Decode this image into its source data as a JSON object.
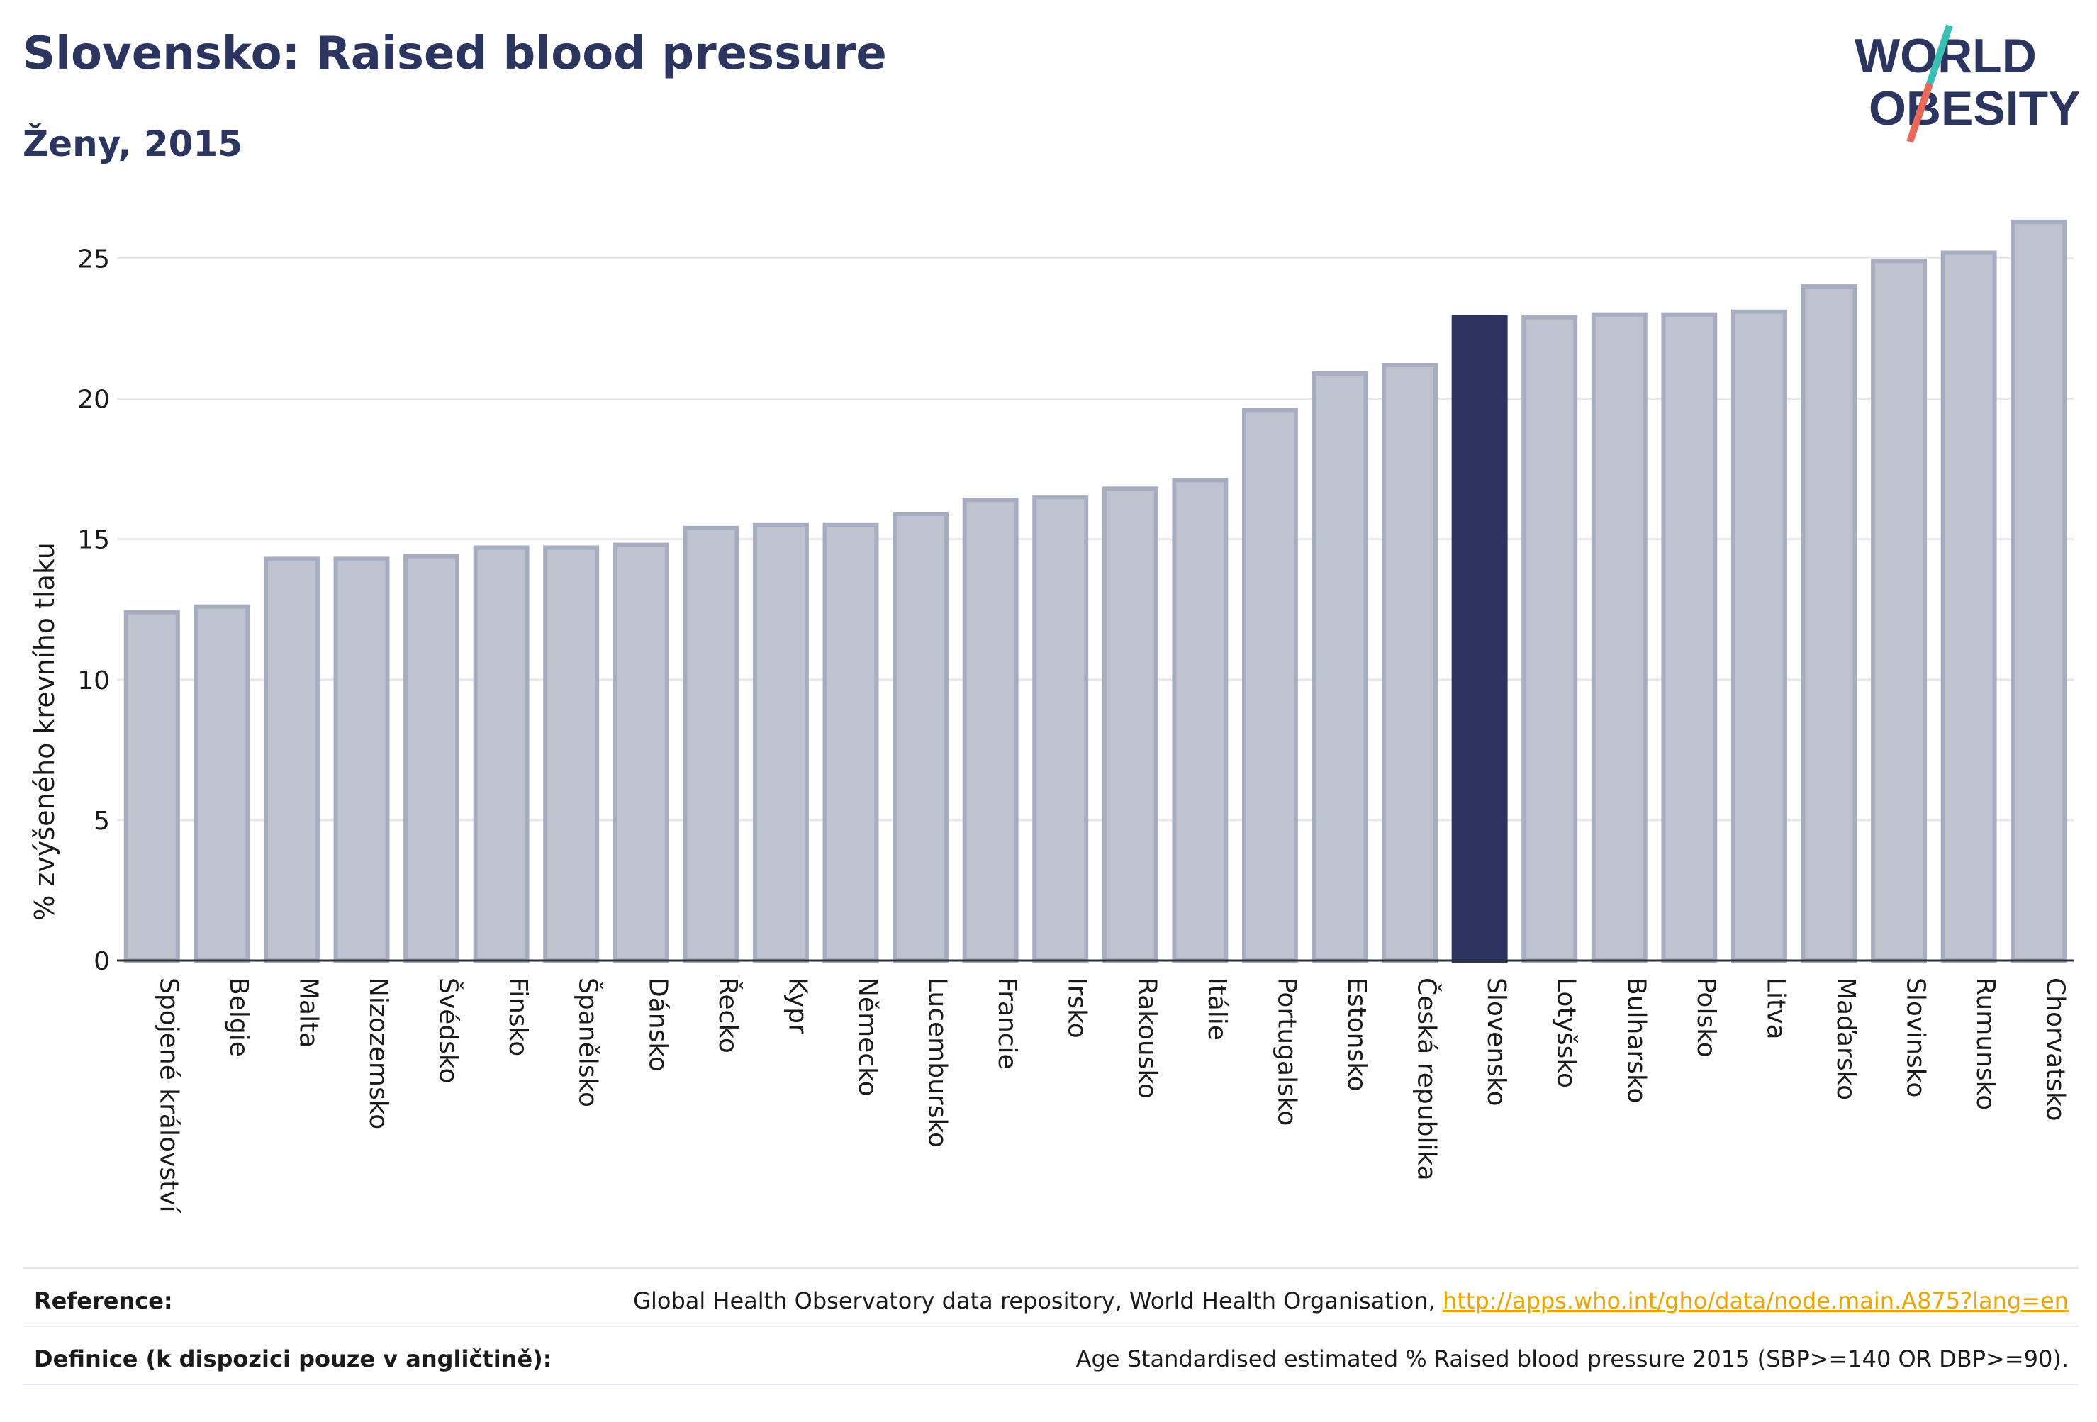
{
  "header": {
    "title": "Slovensko: Raised blood pressure",
    "subtitle": "Ženy, 2015"
  },
  "logo": {
    "line1": "WORLD",
    "line2": "OBESITY",
    "color_text": "#2b355f",
    "color_slash_top": "#3bbfb4",
    "color_slash_bottom": "#e8685a"
  },
  "chart_data": {
    "type": "bar",
    "ylabel": "% zvýšeného krevního tlaku",
    "ylim": [
      0,
      26.5
    ],
    "yticks": [
      0,
      5,
      10,
      15,
      20,
      25
    ],
    "grid": true,
    "highlight": "Slovensko",
    "colors": {
      "bar": "#bfc3d0",
      "bar_edge": "#a7adc1",
      "highlight": "#2b355f",
      "grid": "#e7e8ee",
      "axis": "#2b2f3a"
    },
    "categories": [
      "Spojené království",
      "Belgie",
      "Malta",
      "Nizozemsko",
      "Švédsko",
      "Finsko",
      "Španělsko",
      "Dánsko",
      "Řecko",
      "Kypr",
      "Německo",
      "Lucembursko",
      "Francie",
      "Irsko",
      "Rakousko",
      "Itálie",
      "Portugalsko",
      "Estonsko",
      "Česká republika",
      "Slovensko",
      "Lotyšsko",
      "Bulharsko",
      "Polsko",
      "Litva",
      "Maďarsko",
      "Slovinsko",
      "Rumunsko",
      "Chorvatsko"
    ],
    "values": [
      12.4,
      12.6,
      14.3,
      14.3,
      14.4,
      14.7,
      14.7,
      14.8,
      15.4,
      15.5,
      15.5,
      15.9,
      16.4,
      16.5,
      16.8,
      17.1,
      19.6,
      20.9,
      21.2,
      22.9,
      22.9,
      23.0,
      23.0,
      23.1,
      24.0,
      24.9,
      25.2,
      26.3
    ]
  },
  "footer": {
    "reference_label": "Reference:",
    "reference_text": "Global Health Observatory data repository, World Health Organisation, ",
    "reference_link": "http://apps.who.int/gho/data/node.main.A875?lang=en",
    "definition_label": "Definice (k dispozici pouze v angličtině):",
    "definition_text": "Age Standardised estimated % Raised blood pressure 2015 (SBP>=140 OR DBP>=90)."
  }
}
